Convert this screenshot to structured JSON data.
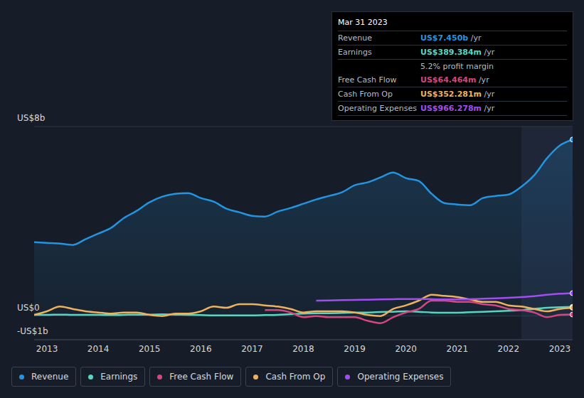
{
  "chart_data": {
    "type": "line",
    "x": [
      2012.75,
      2013,
      2013.25,
      2013.5,
      2013.75,
      2014,
      2014.25,
      2014.5,
      2014.75,
      2015,
      2015.25,
      2015.5,
      2015.75,
      2016,
      2016.25,
      2016.5,
      2016.75,
      2017,
      2017.25,
      2017.5,
      2017.75,
      2018,
      2018.25,
      2018.5,
      2018.75,
      2019,
      2019.25,
      2019.5,
      2019.75,
      2020,
      2020.25,
      2020.5,
      2020.75,
      2021,
      2021.25,
      2021.5,
      2021.75,
      2022,
      2022.25,
      2022.5,
      2022.75,
      2023,
      2023.25
    ],
    "xlim": [
      2012.75,
      2023.25
    ],
    "xticks": [
      2013,
      2014,
      2015,
      2016,
      2017,
      2018,
      2019,
      2020,
      2021,
      2022,
      2023
    ],
    "ylim": [
      -1,
      8
    ],
    "yticks": [
      {
        "value": -1,
        "label": "-US$1b"
      },
      {
        "value": 0,
        "label": "US$0"
      },
      {
        "value": 8,
        "label": "US$8b"
      }
    ],
    "grid": true,
    "series": [
      {
        "name": "Revenue",
        "type": "area",
        "color": "#2394df",
        "values": [
          3.12,
          3.09,
          3.06,
          3.0,
          3.24,
          3.48,
          3.72,
          4.14,
          4.44,
          4.8,
          5.04,
          5.16,
          5.19,
          4.98,
          4.83,
          4.53,
          4.38,
          4.23,
          4.2,
          4.41,
          4.56,
          4.74,
          4.92,
          5.07,
          5.22,
          5.52,
          5.64,
          5.85,
          6.06,
          5.82,
          5.7,
          5.16,
          4.77,
          4.71,
          4.68,
          4.98,
          5.07,
          5.13,
          5.46,
          5.94,
          6.66,
          7.2,
          7.45
        ]
      },
      {
        "name": "Earnings",
        "type": "line",
        "color": "#58d5c0",
        "values": [
          0.05,
          0.05,
          0.06,
          0.05,
          0.05,
          0.05,
          0.04,
          0.05,
          0.06,
          0.06,
          0.07,
          0.06,
          0.05,
          0.04,
          0.03,
          0.03,
          0.03,
          0.03,
          0.04,
          0.05,
          0.08,
          0.1,
          0.12,
          0.12,
          0.13,
          0.15,
          0.15,
          0.17,
          0.18,
          0.2,
          0.18,
          0.15,
          0.14,
          0.14,
          0.16,
          0.18,
          0.2,
          0.22,
          0.25,
          0.3,
          0.35,
          0.37,
          0.389
        ]
      },
      {
        "name": "Free Cash Flow",
        "type": "line",
        "color": "#d7467f",
        "values": [
          null,
          null,
          null,
          null,
          null,
          null,
          null,
          null,
          null,
          null,
          null,
          null,
          null,
          null,
          null,
          null,
          null,
          null,
          0.25,
          0.25,
          0.15,
          -0.05,
          0.0,
          -0.05,
          -0.05,
          -0.05,
          -0.2,
          -0.3,
          -0.05,
          0.15,
          0.3,
          0.65,
          0.65,
          0.6,
          0.6,
          0.5,
          0.45,
          0.3,
          0.25,
          0.15,
          -0.05,
          0.05,
          0.064
        ]
      },
      {
        "name": "Cash From Op",
        "type": "line",
        "color": "#eeb25e",
        "values": [
          0.05,
          0.2,
          0.4,
          0.3,
          0.2,
          0.15,
          0.1,
          0.15,
          0.15,
          0.05,
          0.0,
          0.1,
          0.1,
          0.2,
          0.4,
          0.35,
          0.5,
          0.5,
          0.45,
          0.4,
          0.3,
          0.15,
          0.2,
          0.2,
          0.2,
          0.15,
          0.05,
          0.0,
          0.3,
          0.45,
          0.65,
          0.9,
          0.85,
          0.8,
          0.7,
          0.6,
          0.6,
          0.45,
          0.4,
          0.3,
          0.2,
          0.3,
          0.352
        ]
      },
      {
        "name": "Operating Expenses",
        "type": "line",
        "color": "#a14ef0",
        "values": [
          null,
          null,
          null,
          null,
          null,
          null,
          null,
          null,
          null,
          null,
          null,
          null,
          null,
          null,
          null,
          null,
          null,
          null,
          null,
          null,
          null,
          null,
          0.65,
          0.66,
          0.67,
          0.68,
          0.69,
          0.7,
          0.71,
          0.72,
          0.72,
          0.71,
          0.7,
          0.7,
          0.71,
          0.73,
          0.75,
          0.77,
          0.8,
          0.84,
          0.9,
          0.94,
          0.966
        ]
      }
    ],
    "annotations": {
      "date": "Mar 31 2023",
      "rows": [
        {
          "label": "Revenue",
          "value": "US$7.450b",
          "unit": "/yr"
        },
        {
          "label": "Earnings",
          "value": "US$389.384m",
          "unit": "/yr"
        },
        {
          "value": "5.2% profit margin"
        },
        {
          "label": "Free Cash Flow",
          "value": "US$64.464m",
          "unit": "/yr"
        },
        {
          "label": "Cash From Op",
          "value": "US$352.281m",
          "unit": "/yr"
        },
        {
          "label": "Operating Expenses",
          "value": "US$966.278m",
          "unit": "/yr"
        }
      ]
    }
  }
}
